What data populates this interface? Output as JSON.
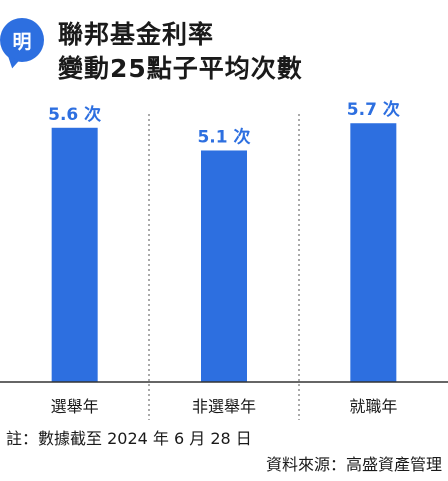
{
  "header": {
    "logo_text": "明",
    "title_line1": "聯邦基金利率",
    "title_line2": "變動25點子平均次數"
  },
  "chart_data": {
    "type": "bar",
    "categories": [
      "選舉年",
      "非選舉年",
      "就職年"
    ],
    "values": [
      5.6,
      5.1,
      5.7
    ],
    "data_labels": [
      "5.6 次",
      "5.1 次",
      "5.7 次"
    ],
    "ylim": [
      0,
      6.3
    ],
    "bar_color": "#2d6fe0",
    "grid": false
  },
  "footnote": "註：數據截至 2024 年 6 月 28 日",
  "source": "資料來源：高盛資產管理"
}
